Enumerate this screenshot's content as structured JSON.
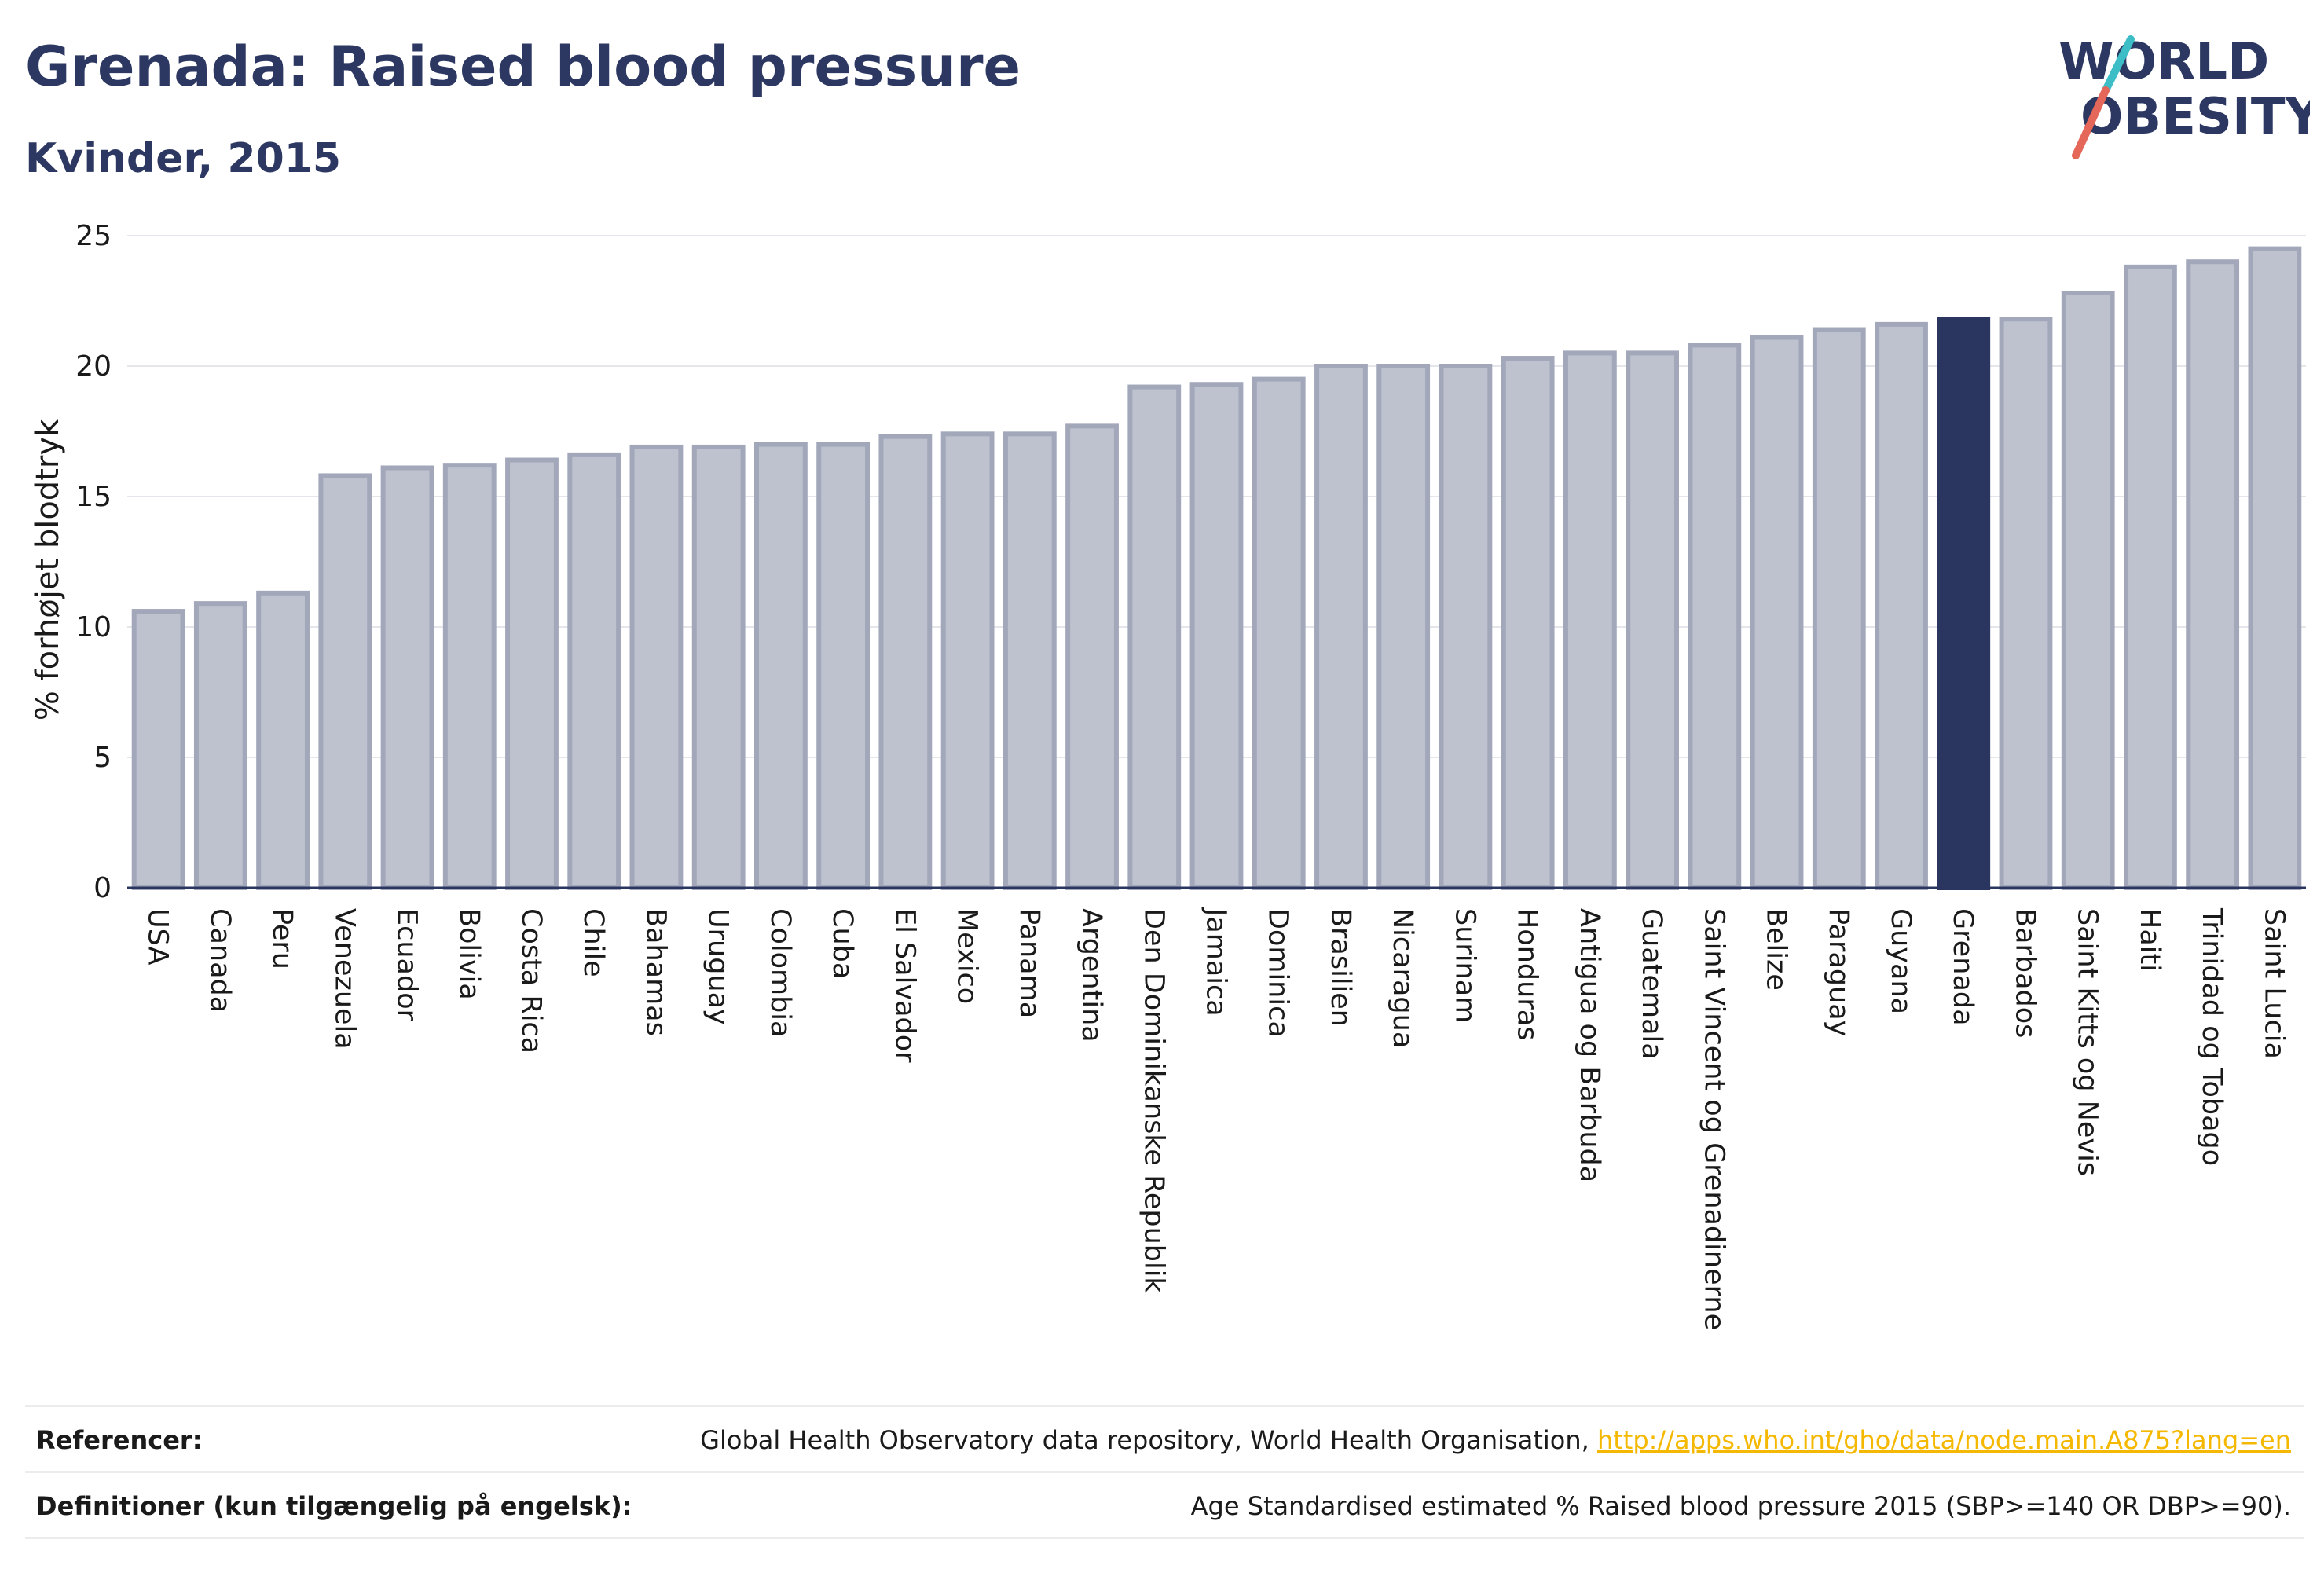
{
  "title": "Grenada: Raised blood pressure",
  "subtitle": "Kvinder, 2015",
  "logo": {
    "line1": "WORLD",
    "line2": "OBESITY"
  },
  "colors": {
    "bar_fill": "#bec2cf",
    "bar_stroke": "#a2a7ba",
    "highlight": "#2a3560",
    "accent_teal": "#3dbdc6",
    "accent_red": "#e5675a",
    "link": "#f5b800"
  },
  "chart_data": {
    "type": "bar",
    "ylabel": "% forhøjet blodtryk",
    "ylim": [
      0,
      25
    ],
    "yticks": [
      0,
      5,
      10,
      15,
      20,
      25
    ],
    "grid": true,
    "highlight": "Grenada",
    "categories": [
      "USA",
      "Canada",
      "Peru",
      "Venezuela",
      "Ecuador",
      "Bolivia",
      "Costa Rica",
      "Chile",
      "Bahamas",
      "Uruguay",
      "Colombia",
      "Cuba",
      "El Salvador",
      "Mexico",
      "Panama",
      "Argentina",
      "Den Dominikanske Republik",
      "Jamaica",
      "Dominica",
      "Brasilien",
      "Nicaragua",
      "Surinam",
      "Honduras",
      "Antigua og Barbuda",
      "Guatemala",
      "Saint Vincent og Grenadinerne",
      "Belize",
      "Paraguay",
      "Guyana",
      "Grenada",
      "Barbados",
      "Saint Kitts og Nevis",
      "Haiti",
      "Trinidad og Tobago",
      "Saint Lucia"
    ],
    "values": [
      10.6,
      10.9,
      11.3,
      15.8,
      16.1,
      16.2,
      16.4,
      16.6,
      16.9,
      16.9,
      17.0,
      17.0,
      17.3,
      17.4,
      17.4,
      17.7,
      19.2,
      19.3,
      19.5,
      20.0,
      20.0,
      20.0,
      20.3,
      20.5,
      20.5,
      20.8,
      21.1,
      21.4,
      21.6,
      21.8,
      21.8,
      22.8,
      23.8,
      24.0,
      24.5
    ]
  },
  "footer": {
    "references_label": "Referencer:",
    "references_text": "Global Health Observatory data repository, World Health Organisation, ",
    "references_link": "http://apps.who.int/gho/data/node.main.A875?lang=en",
    "definitions_label": "Definitioner (kun tilgængelig på engelsk):",
    "definitions_text": "Age Standardised estimated % Raised blood pressure 2015 (SBP>=140 OR DBP>=90)."
  }
}
